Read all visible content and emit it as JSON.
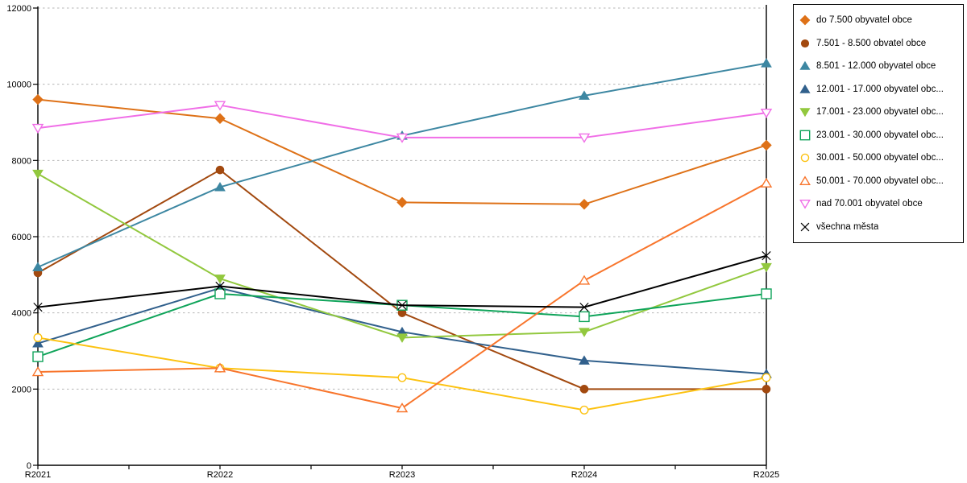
{
  "chart_data": {
    "type": "line",
    "title": "",
    "xlabel": "",
    "ylabel": "",
    "categories": [
      "R2021",
      "R2022",
      "R2023",
      "R2024",
      "R2025"
    ],
    "ylim": [
      0,
      12000
    ],
    "yticks": [
      0,
      2000,
      4000,
      6000,
      8000,
      10000,
      12000
    ],
    "grid": "horizontal-dashed",
    "legend_position": "top-right",
    "series": [
      {
        "name": "do 7.500 obyvatel obce",
        "marker": "diamond",
        "fill": "solid",
        "color": "#DE7117",
        "values": [
          9600,
          9100,
          6900,
          6850,
          8400
        ]
      },
      {
        "name": "7.501 - 8.500 obvatel obce",
        "marker": "circle",
        "fill": "solid",
        "color": "#A2490F",
        "values": [
          5050,
          7750,
          4000,
          2000,
          2000
        ]
      },
      {
        "name": "8.501 - 12.000 obyvatel obce",
        "marker": "triangle-up",
        "fill": "solid",
        "color": "#3D87A2",
        "values": [
          5200,
          7300,
          8650,
          9700,
          10550
        ]
      },
      {
        "name": "12.001 - 17.000 obyvatel obc...",
        "marker": "triangle-up",
        "fill": "solid",
        "color": "#31608C",
        "values": [
          3200,
          4650,
          3500,
          2750,
          2400
        ]
      },
      {
        "name": "17.001 - 23.000 obyvatel obc...",
        "marker": "triangle-down",
        "fill": "solid",
        "color": "#92C83E",
        "values": [
          7650,
          4900,
          3350,
          3500,
          5200
        ]
      },
      {
        "name": "23.001 - 30.000 obyvatel obc...",
        "marker": "square",
        "fill": "open",
        "color": "#0FA45A",
        "values": [
          2850,
          4500,
          4200,
          3900,
          4500
        ]
      },
      {
        "name": "30.001 - 50.000 obyvatel obc...",
        "marker": "circle",
        "fill": "open",
        "color": "#FCC211",
        "values": [
          3350,
          2550,
          2300,
          1450,
          2300
        ]
      },
      {
        "name": "50.001 - 70.000 obyvatel obc...",
        "marker": "triangle-up",
        "fill": "open",
        "color": "#F8752C",
        "values": [
          2450,
          2550,
          1500,
          4850,
          7400
        ]
      },
      {
        "name": "nad 70.001 obyvatel obce",
        "marker": "triangle-down",
        "fill": "open",
        "color": "#F06EE7",
        "values": [
          8850,
          9450,
          8600,
          8600,
          9250
        ]
      },
      {
        "name": "všechna města",
        "marker": "x-cross",
        "fill": "line",
        "color": "#000000",
        "values": [
          4150,
          4700,
          4200,
          4150,
          5500
        ]
      }
    ],
    "colors": {
      "axis": "#000000",
      "gridline": "#b5b5b5",
      "background": "#ffffff",
      "legend_border": "#000000"
    }
  }
}
